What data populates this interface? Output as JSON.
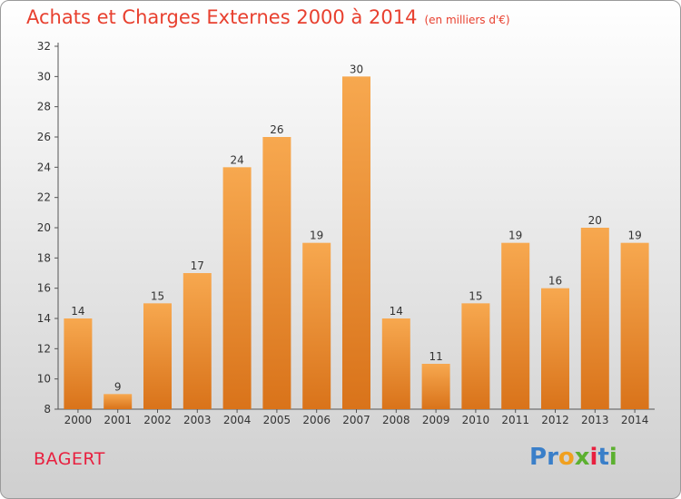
{
  "title": "Achats et Charges Externes 2000 à 2014",
  "unit_note": "(en milliers d'€)",
  "commune": "BAGERT",
  "logo": {
    "text": "Proxiti",
    "letters": [
      "P",
      "r",
      "o",
      "x",
      "i",
      "t",
      "i"
    ],
    "colors": [
      "#3a7fc9",
      "#3a7fc9",
      "#f0a020",
      "#5cb030",
      "#e8203f",
      "#3a7fc9",
      "#5cb030"
    ]
  },
  "colors": {
    "bar_top": "#f7a84f",
    "bar_bottom": "#d9731a",
    "title": "#e8402f",
    "commune": "#e8203f"
  },
  "chart_data": {
    "type": "bar",
    "categories": [
      "2000",
      "2001",
      "2002",
      "2003",
      "2004",
      "2005",
      "2006",
      "2007",
      "2008",
      "2009",
      "2010",
      "2011",
      "2012",
      "2013",
      "2014"
    ],
    "values": [
      14,
      9,
      15,
      17,
      24,
      26,
      19,
      30,
      14,
      11,
      15,
      19,
      16,
      20,
      19
    ],
    "ylim": [
      8,
      32
    ],
    "yticks": [
      8,
      10,
      12,
      14,
      16,
      18,
      20,
      22,
      24,
      26,
      28,
      30,
      32
    ],
    "grid": false,
    "legend": "none"
  }
}
